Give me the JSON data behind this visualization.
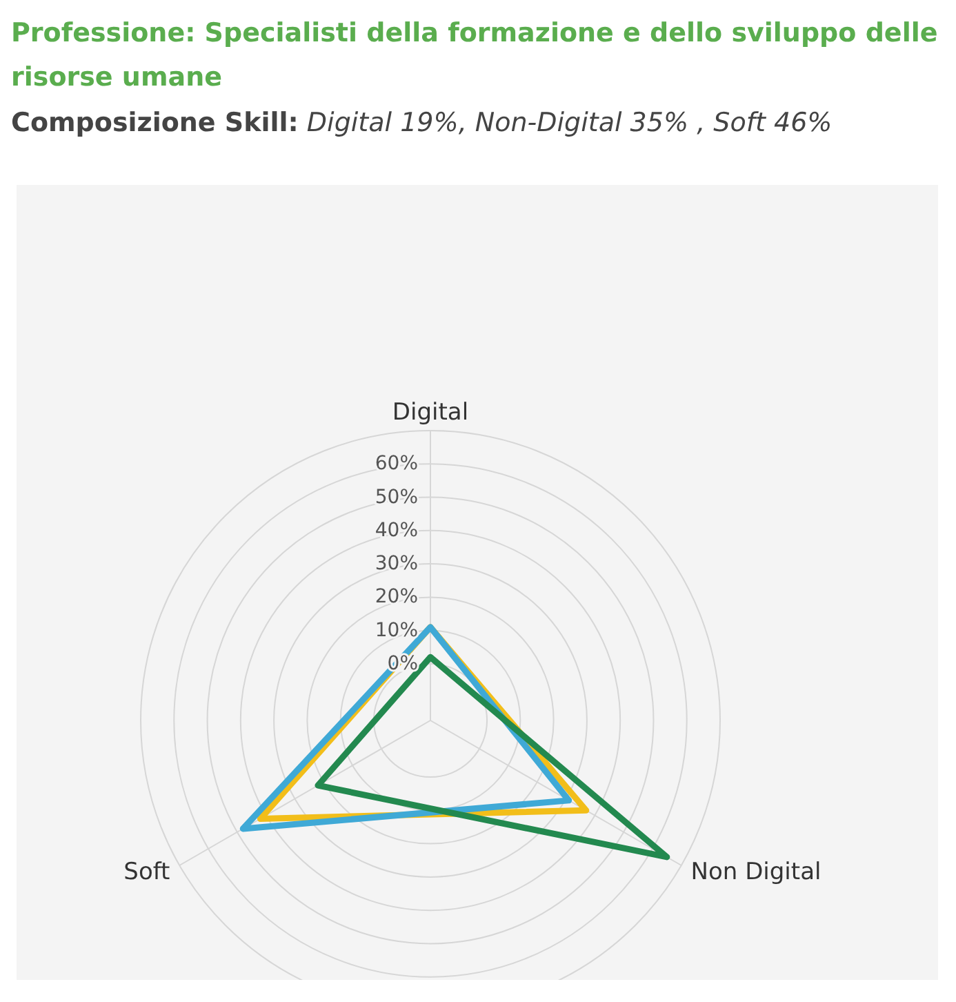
{
  "chart_data": {
    "type": "radar",
    "title": "Professione: Specialisti della formazione e dello sviluppo delle risorse umane",
    "subtitle": "Composizione Skill: Digital 19%,  Non-Digital 35% , Soft 46%",
    "categories": [
      "Digital",
      "Non Digital",
      "Soft"
    ],
    "series": [
      {
        "color": "#f2be1a",
        "values": [
          11,
          37,
          42
        ]
      },
      {
        "color": "#3fa9d6",
        "values": [
          11,
          31,
          48
        ]
      },
      {
        "color": "#23894f",
        "values": [
          2,
          65,
          22
        ]
      }
    ],
    "ylim": [
      -17,
      70
    ],
    "yticks": [
      {
        "value": 0,
        "label": "0%"
      },
      {
        "value": 10,
        "label": "10%"
      },
      {
        "value": 20,
        "label": "20%"
      },
      {
        "value": 30,
        "label": "30%"
      },
      {
        "value": 40,
        "label": "40%"
      },
      {
        "value": 50,
        "label": "50%"
      },
      {
        "value": 60,
        "label": "60%"
      }
    ],
    "grid": true,
    "legend": false
  }
}
